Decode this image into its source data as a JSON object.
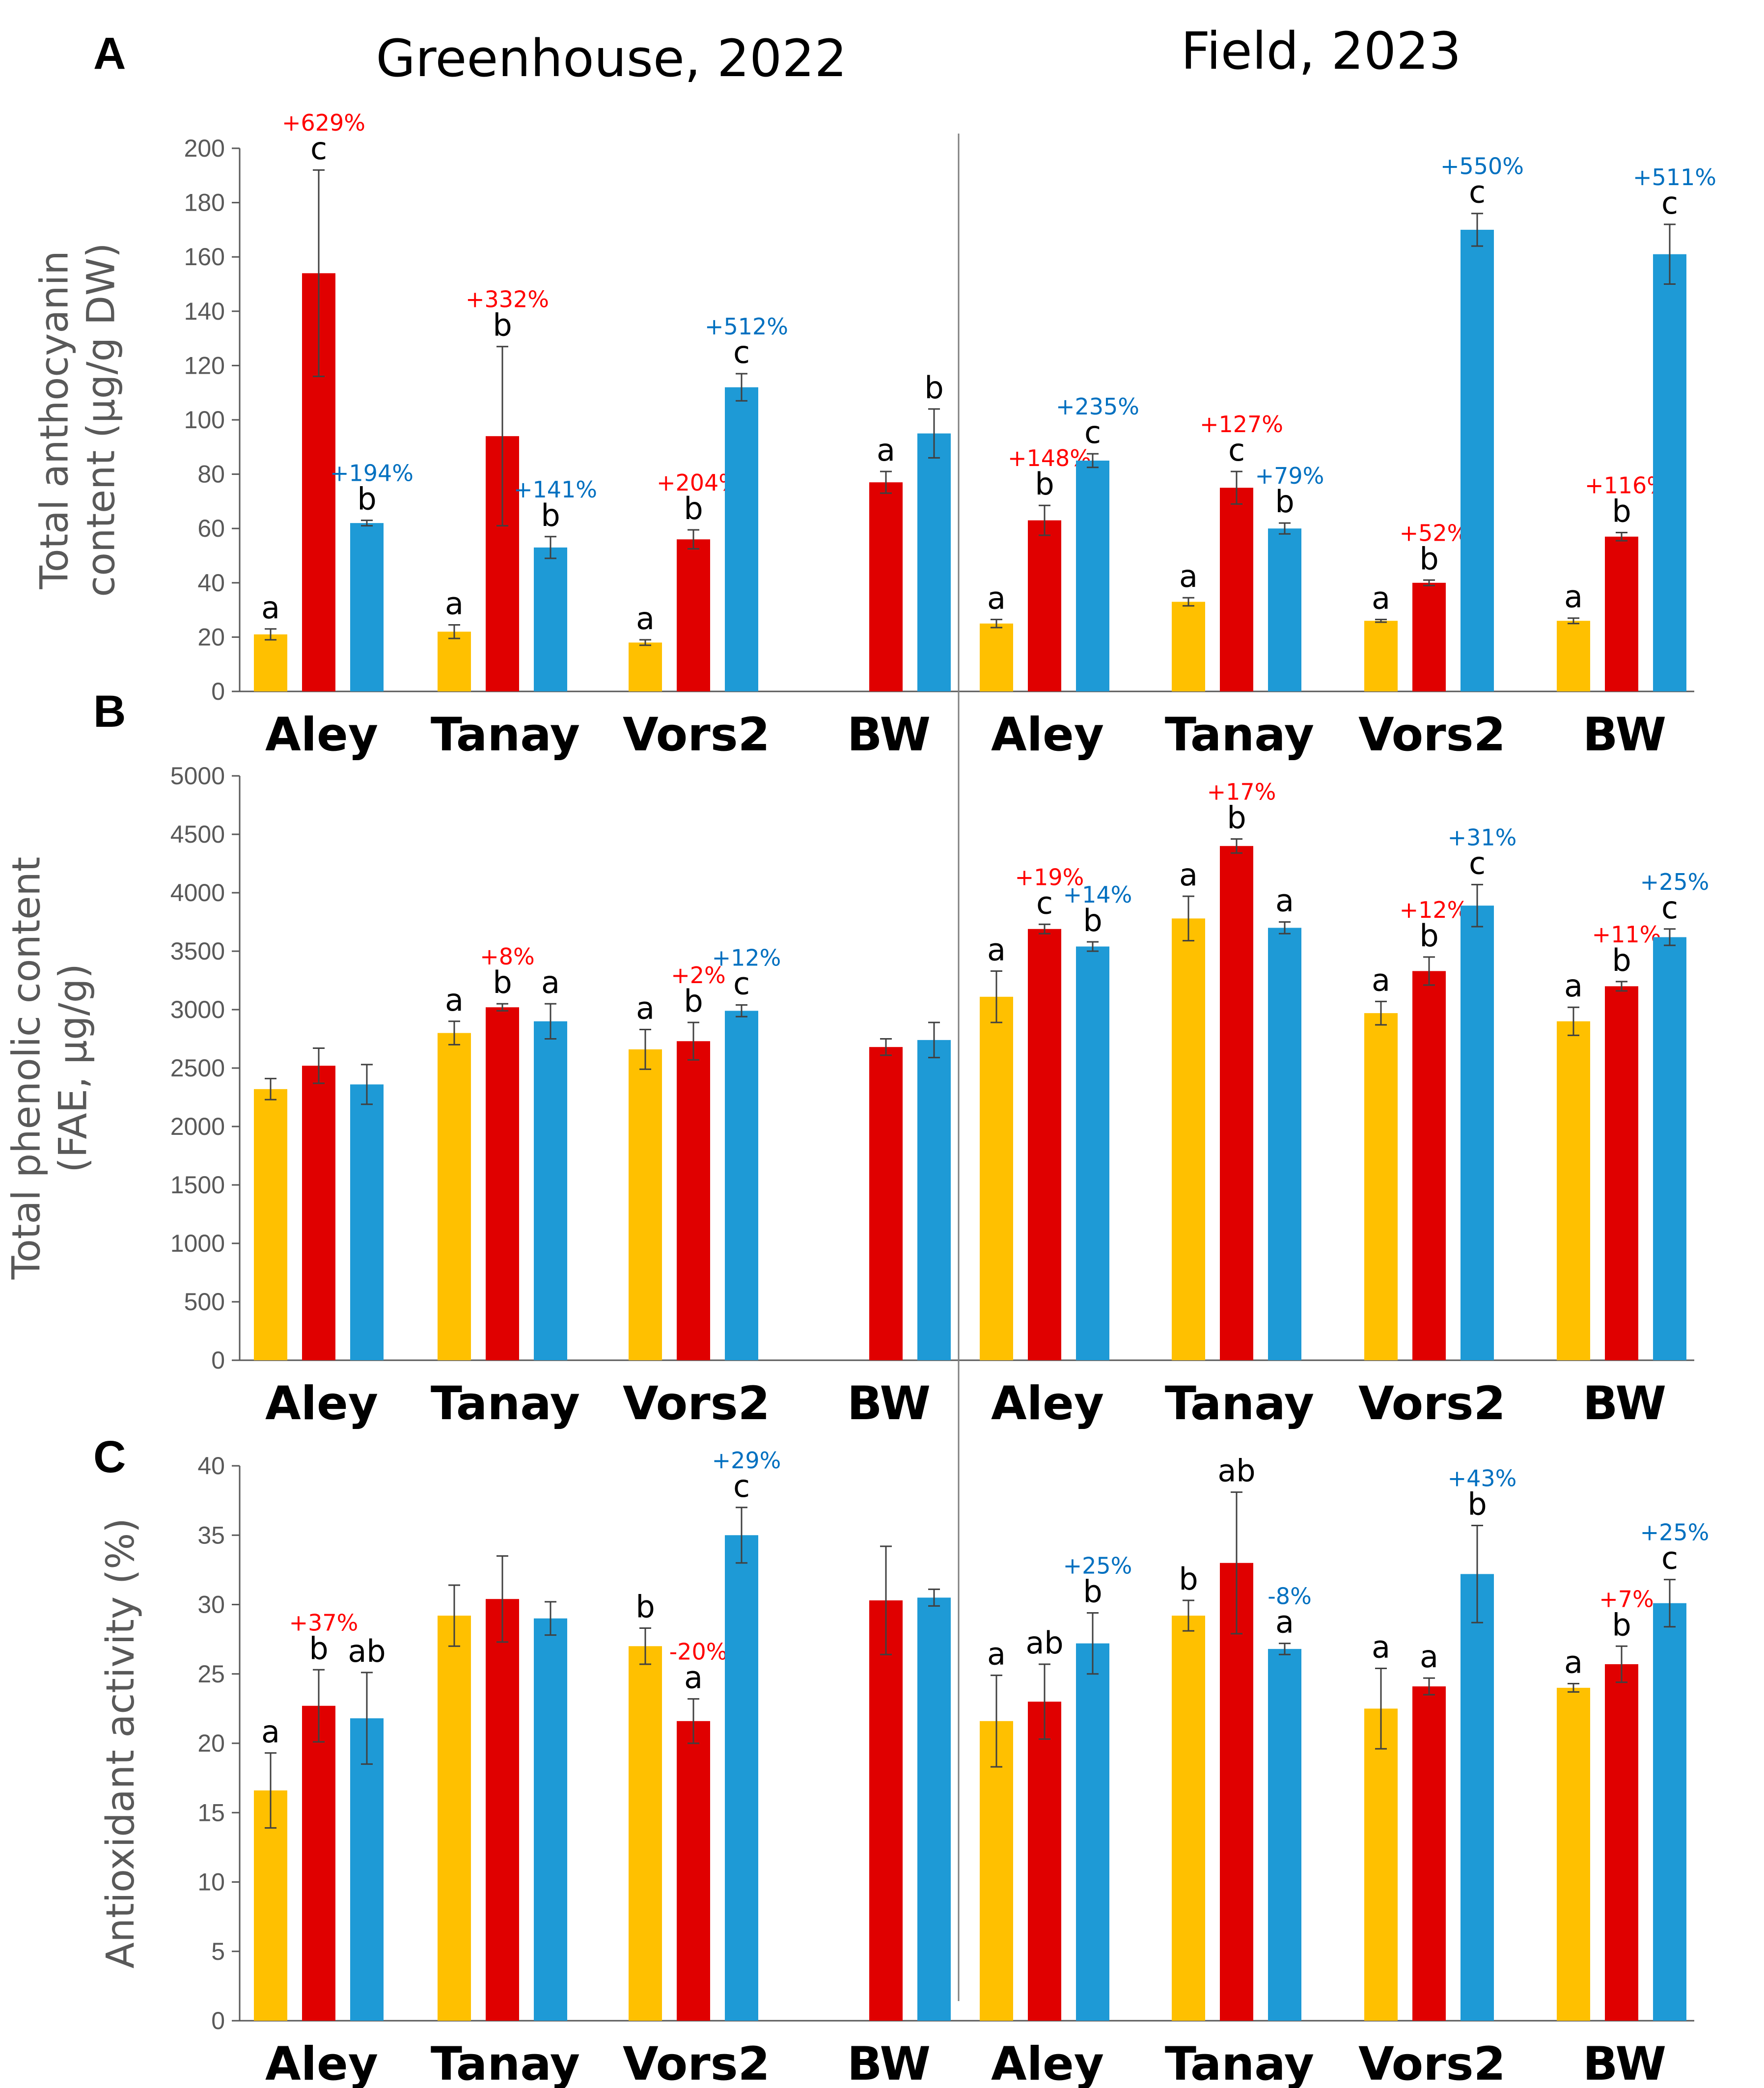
{
  "figure": {
    "panel_labels": [
      "A",
      "B",
      "C"
    ],
    "group_titles": [
      "Greenhouse, 2022",
      "Field, 2023"
    ],
    "colors": {
      "yellow": "#FFC000",
      "red": "#E00000",
      "blue": "#1E9AD6",
      "pct_red": "#FF0000",
      "pct_blue": "#0070C0",
      "axis": "#595959"
    }
  },
  "chart_data": [
    {
      "type": "bar",
      "panel": "A",
      "ylabel_lines": [
        "Total anthocyanin",
        "content (µg/g DW)"
      ],
      "ylim": [
        0,
        200
      ],
      "yticks": [
        0,
        20,
        40,
        60,
        80,
        100,
        120,
        140,
        160,
        180,
        200
      ],
      "groups": [
        "Greenhouse, 2022",
        "Field, 2023"
      ],
      "categories": [
        "Aley",
        "Tanay",
        "Vors2",
        "BW"
      ],
      "series_colors": [
        "yellow",
        "red",
        "blue"
      ],
      "data": [
        [
          [
            {
              "v": 21,
              "e": 2,
              "sig": "a"
            },
            {
              "v": 154,
              "e": 38,
              "sig": "c",
              "pct": "+629%"
            },
            {
              "v": 62,
              "e": 1,
              "sig": "b",
              "pct": "+194%"
            }
          ],
          [
            {
              "v": 22,
              "e": 2.5,
              "sig": "a"
            },
            {
              "v": 94,
              "e": 33,
              "sig": "b",
              "pct": "+332%"
            },
            {
              "v": 53,
              "e": 4,
              "sig": "b",
              "pct": "+141%"
            }
          ],
          [
            {
              "v": 18,
              "e": 1,
              "sig": "a"
            },
            {
              "v": 56,
              "e": 3.5,
              "sig": "b",
              "pct": "+204%"
            },
            {
              "v": 112,
              "e": 5,
              "sig": "c",
              "pct": "+512%"
            }
          ],
          [
            null,
            {
              "v": 77,
              "e": 4,
              "sig": "a"
            },
            {
              "v": 95,
              "e": 9,
              "sig": "b"
            }
          ]
        ],
        [
          [
            {
              "v": 25,
              "e": 1.5,
              "sig": "a"
            },
            {
              "v": 63,
              "e": 5.5,
              "sig": "b",
              "pct": "+148%"
            },
            {
              "v": 85,
              "e": 2.5,
              "sig": "c",
              "pct": "+235%"
            }
          ],
          [
            {
              "v": 33,
              "e": 1.5,
              "sig": "a"
            },
            {
              "v": 75,
              "e": 6,
              "sig": "c",
              "pct": "+127%"
            },
            {
              "v": 60,
              "e": 2,
              "sig": "b",
              "pct": "+79%"
            }
          ],
          [
            {
              "v": 26,
              "e": 0.5,
              "sig": "a"
            },
            {
              "v": 40,
              "e": 1,
              "sig": "b",
              "pct": "+52%"
            },
            {
              "v": 170,
              "e": 6,
              "sig": "c",
              "pct": "+550%"
            }
          ],
          [
            {
              "v": 26,
              "e": 1,
              "sig": "a"
            },
            {
              "v": 57,
              "e": 1.5,
              "sig": "b",
              "pct": "+116%"
            },
            {
              "v": 161,
              "e": 11,
              "sig": "c",
              "pct": "+511%"
            }
          ]
        ]
      ]
    },
    {
      "type": "bar",
      "panel": "B",
      "ylabel_lines": [
        "Total phenolic content",
        "(FAE, µg/g)"
      ],
      "ylim": [
        0,
        5000
      ],
      "yticks": [
        0,
        500,
        1000,
        1500,
        2000,
        2500,
        3000,
        3500,
        4000,
        4500,
        5000
      ],
      "groups": [
        "Greenhouse, 2022",
        "Field, 2023"
      ],
      "categories": [
        "Aley",
        "Tanay",
        "Vors2",
        "BW"
      ],
      "series_colors": [
        "yellow",
        "red",
        "blue"
      ],
      "data": [
        [
          [
            {
              "v": 2320,
              "e": 90
            },
            {
              "v": 2520,
              "e": 150
            },
            {
              "v": 2360,
              "e": 170
            }
          ],
          [
            {
              "v": 2800,
              "e": 100,
              "sig": "a"
            },
            {
              "v": 3020,
              "e": 30,
              "sig": "b",
              "pct": "+8%"
            },
            {
              "v": 2900,
              "e": 150,
              "sig": "a"
            }
          ],
          [
            {
              "v": 2660,
              "e": 170,
              "sig": "a"
            },
            {
              "v": 2730,
              "e": 160,
              "sig": "b",
              "pct": "+2%"
            },
            {
              "v": 2990,
              "e": 50,
              "sig": "c",
              "pct": "+12%"
            }
          ],
          [
            null,
            {
              "v": 2680,
              "e": 70
            },
            {
              "v": 2740,
              "e": 150
            }
          ]
        ],
        [
          [
            {
              "v": 3110,
              "e": 220,
              "sig": "a"
            },
            {
              "v": 3690,
              "e": 40,
              "sig": "c",
              "pct": "+19%"
            },
            {
              "v": 3540,
              "e": 40,
              "sig": "b",
              "pct": "+14%"
            }
          ],
          [
            {
              "v": 3780,
              "e": 190,
              "sig": "a"
            },
            {
              "v": 4400,
              "e": 60,
              "sig": "b",
              "pct": "+17%"
            },
            {
              "v": 3700,
              "e": 50,
              "sig": "a"
            }
          ],
          [
            {
              "v": 2970,
              "e": 100,
              "sig": "a"
            },
            {
              "v": 3330,
              "e": 120,
              "sig": "b",
              "pct": "+12%"
            },
            {
              "v": 3890,
              "e": 180,
              "sig": "c",
              "pct": "+31%"
            }
          ],
          [
            {
              "v": 2900,
              "e": 120,
              "sig": "a"
            },
            {
              "v": 3200,
              "e": 40,
              "sig": "b",
              "pct": "+11%"
            },
            {
              "v": 3620,
              "e": 70,
              "sig": "c",
              "pct": "+25%"
            }
          ]
        ]
      ]
    },
    {
      "type": "bar",
      "panel": "C",
      "ylabel_lines": [
        "Antioxidant activity (%)"
      ],
      "ylim": [
        0,
        40
      ],
      "yticks": [
        0,
        5,
        10,
        15,
        20,
        25,
        30,
        35,
        40
      ],
      "groups": [
        "Greenhouse, 2022",
        "Field, 2023"
      ],
      "categories": [
        "Aley",
        "Tanay",
        "Vors2",
        "BW"
      ],
      "series_colors": [
        "yellow",
        "red",
        "blue"
      ],
      "data": [
        [
          [
            {
              "v": 16.6,
              "e": 2.7,
              "sig": "a"
            },
            {
              "v": 22.7,
              "e": 2.6,
              "sig": "b",
              "pct": "+37%"
            },
            {
              "v": 21.8,
              "e": 3.3,
              "sig": "ab"
            }
          ],
          [
            {
              "v": 29.2,
              "e": 2.2
            },
            {
              "v": 30.4,
              "e": 3.1
            },
            {
              "v": 29.0,
              "e": 1.2
            }
          ],
          [
            {
              "v": 27.0,
              "e": 1.3,
              "sig": "b"
            },
            {
              "v": 21.6,
              "e": 1.6,
              "sig": "a",
              "pct": "-20%"
            },
            {
              "v": 35.0,
              "e": 2.0,
              "sig": "c",
              "pct": "+29%"
            }
          ],
          [
            null,
            {
              "v": 30.3,
              "e": 3.9
            },
            {
              "v": 30.5,
              "e": 0.6
            }
          ]
        ],
        [
          [
            {
              "v": 21.6,
              "e": 3.3,
              "sig": "a"
            },
            {
              "v": 23.0,
              "e": 2.7,
              "sig": "ab"
            },
            {
              "v": 27.2,
              "e": 2.2,
              "sig": "b",
              "pct": "+25%"
            }
          ],
          [
            {
              "v": 29.2,
              "e": 1.1,
              "sig": "b"
            },
            {
              "v": 33.0,
              "e": 5.1,
              "sig": "ab"
            },
            {
              "v": 26.8,
              "e": 0.4,
              "sig": "a",
              "pct": "-8%"
            }
          ],
          [
            {
              "v": 22.5,
              "e": 2.9,
              "sig": "a"
            },
            {
              "v": 24.1,
              "e": 0.6,
              "sig": "a"
            },
            {
              "v": 32.2,
              "e": 3.5,
              "sig": "b",
              "pct": "+43%"
            }
          ],
          [
            {
              "v": 24.0,
              "e": 0.3,
              "sig": "a"
            },
            {
              "v": 25.7,
              "e": 1.3,
              "sig": "b",
              "pct": "+7%"
            },
            {
              "v": 30.1,
              "e": 1.7,
              "sig": "c",
              "pct": "+25%"
            }
          ]
        ]
      ]
    }
  ]
}
